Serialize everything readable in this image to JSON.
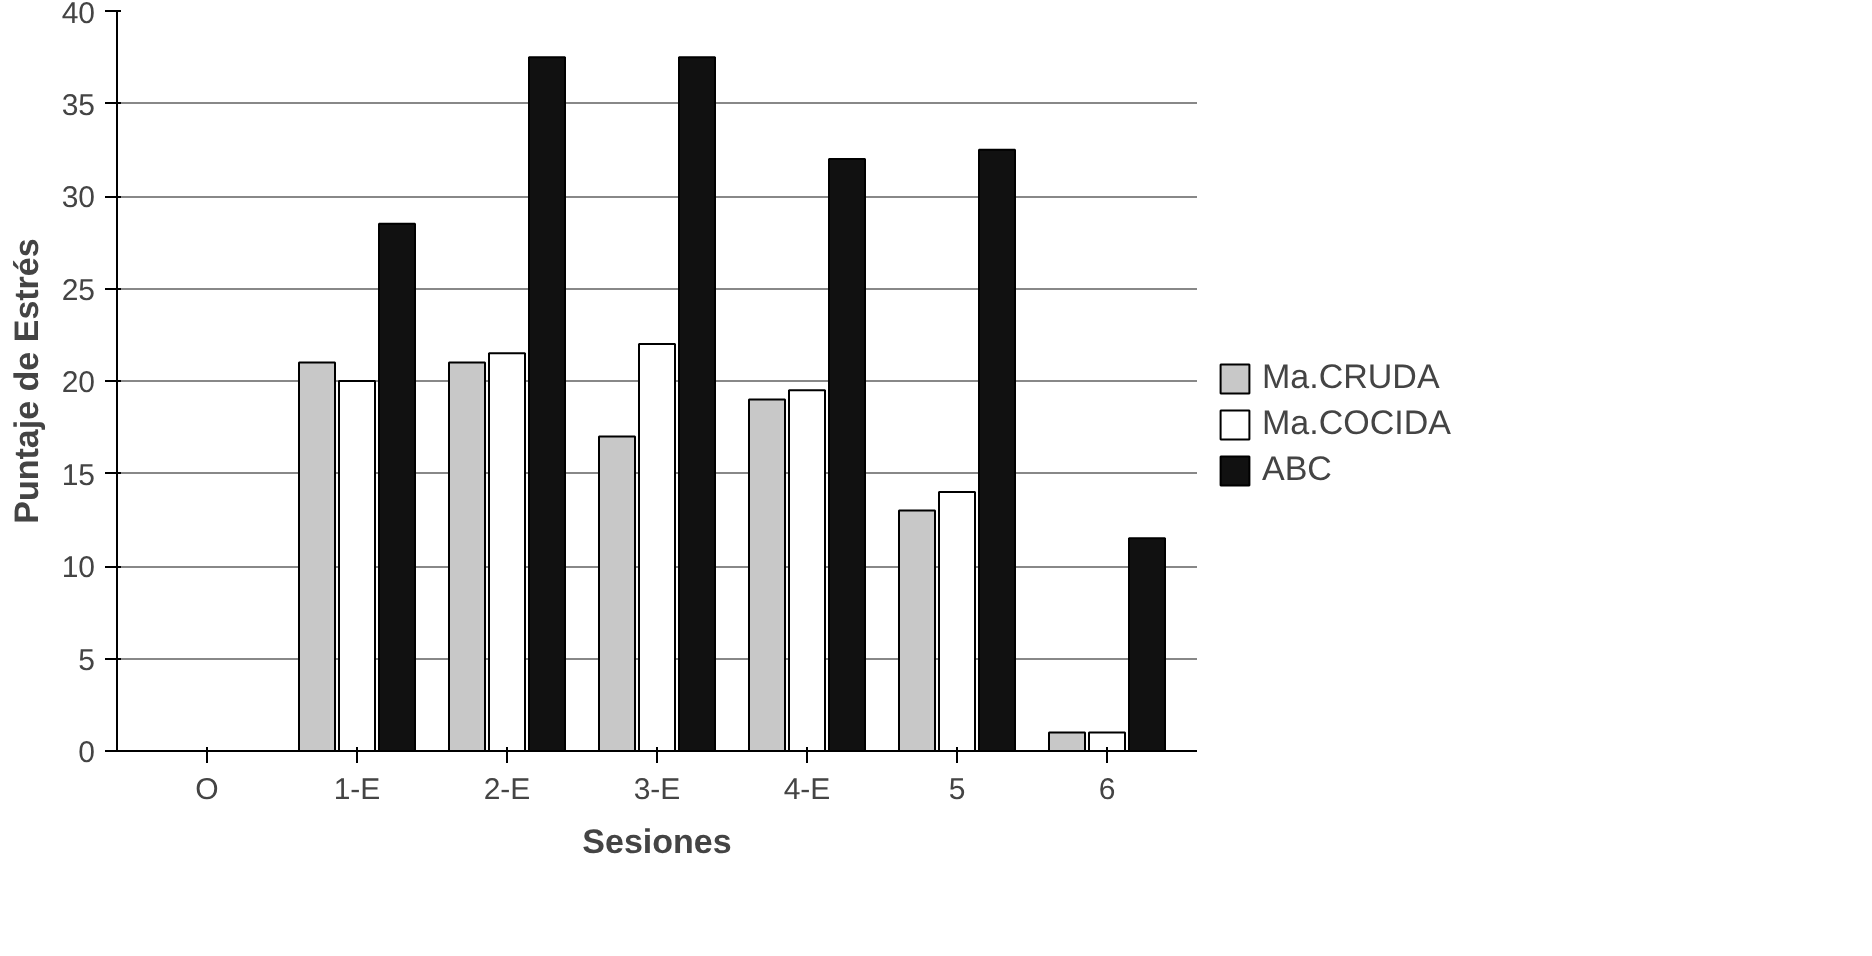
{
  "chart_data": {
    "type": "bar",
    "xlabel": "Sesiones",
    "ylabel": "Puntaje de Estrés",
    "categories": [
      "O",
      "1-E",
      "2-E",
      "3-E",
      "4-E",
      "5",
      "6"
    ],
    "series": [
      {
        "name": "Ma.CRUDA",
        "color": "#c8c8c8",
        "values": [
          0,
          21,
          21,
          17,
          19,
          13,
          1
        ]
      },
      {
        "name": "Ma.COCIDA",
        "color": "#ffffff",
        "values": [
          0,
          20,
          21.5,
          22,
          19.5,
          14,
          1
        ]
      },
      {
        "name": "ABC",
        "color": "#111111",
        "values": [
          0,
          28.5,
          37.5,
          37.5,
          32,
          32.5,
          11.5
        ]
      }
    ],
    "ylim": [
      0,
      40
    ],
    "yticks": [
      0,
      5,
      10,
      15,
      20,
      25,
      30,
      35,
      40
    ],
    "grid": "y",
    "legend": "right"
  }
}
